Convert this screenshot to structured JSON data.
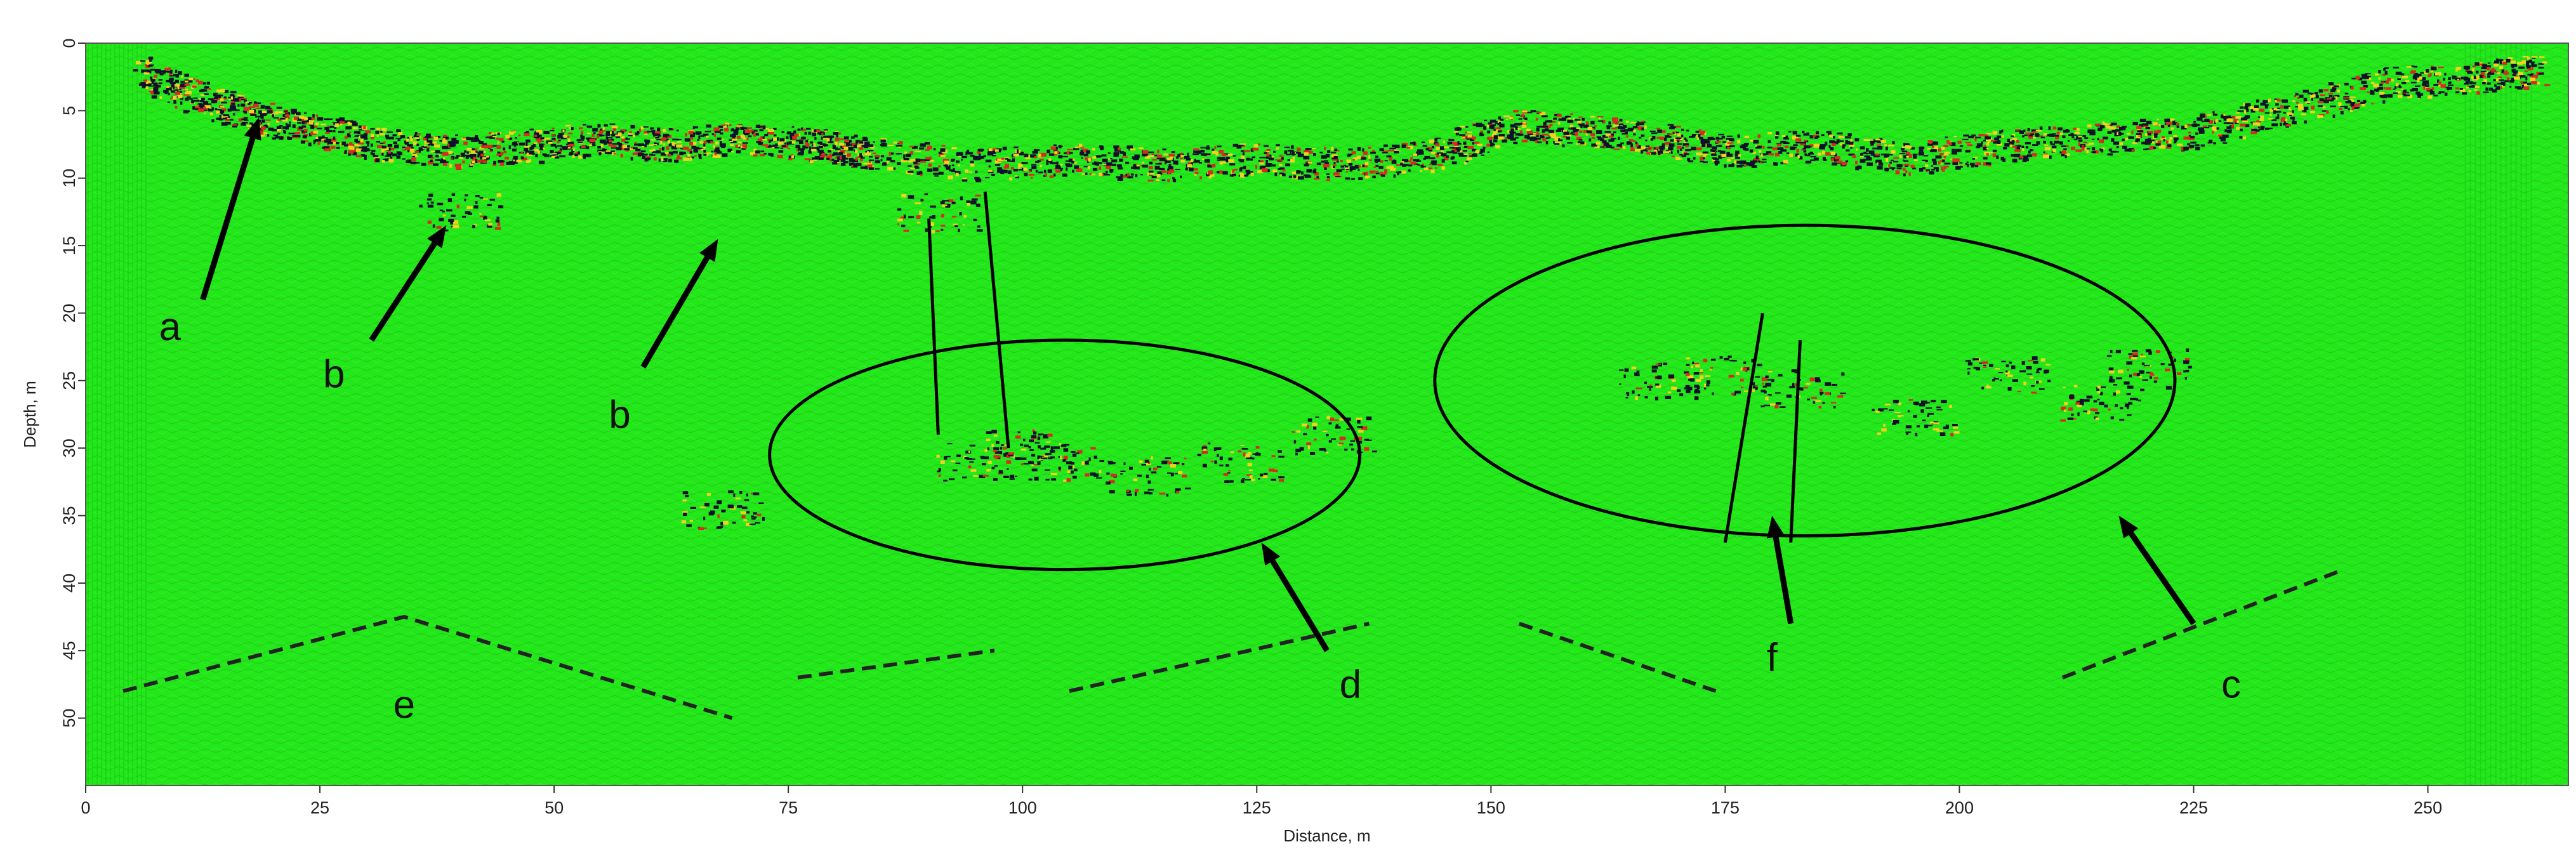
{
  "chart_data": {
    "type": "heatmap",
    "title": "",
    "xlabel": "Distance, m",
    "ylabel": "Depth, m",
    "xlim": [
      0,
      265
    ],
    "ylim": [
      55,
      0
    ],
    "x_ticks": [
      0,
      25,
      50,
      75,
      100,
      125,
      150,
      175,
      200,
      225,
      250
    ],
    "x_tick_labels": [
      "0",
      "25",
      "50",
      "75",
      "100",
      "125",
      "150",
      "175",
      "200",
      "225",
      "250"
    ],
    "y_ticks": [
      0,
      5,
      10,
      15,
      20,
      25,
      30,
      35,
      40,
      45,
      50
    ],
    "y_tick_labels": [
      "0",
      "5",
      "10",
      "15",
      "20",
      "25",
      "30",
      "35",
      "40",
      "45",
      "50"
    ],
    "grid": false,
    "legend": "none",
    "colors": {
      "background": "#22e81a",
      "reflection_dark": "#10102a",
      "reflection_red": "#d82a1e",
      "reflection_yellow": "#f2d21e",
      "annotation": "#000000"
    },
    "near_surface_reflections": [
      [
        6,
        2
      ],
      [
        12,
        4
      ],
      [
        18,
        5.5
      ],
      [
        25,
        6.5
      ],
      [
        32,
        7.5
      ],
      [
        40,
        8
      ],
      [
        48,
        7.5
      ],
      [
        55,
        7
      ],
      [
        62,
        7.5
      ],
      [
        70,
        7
      ],
      [
        78,
        7.5
      ],
      [
        83,
        8
      ],
      [
        95,
        9
      ],
      [
        105,
        8.5
      ],
      [
        115,
        9
      ],
      [
        125,
        8.5
      ],
      [
        135,
        9
      ],
      [
        145,
        8
      ],
      [
        152,
        6
      ],
      [
        160,
        6.5
      ],
      [
        168,
        7
      ],
      [
        175,
        8
      ],
      [
        185,
        7.5
      ],
      [
        195,
        8.5
      ],
      [
        205,
        7.5
      ],
      [
        215,
        7
      ],
      [
        225,
        6.5
      ],
      [
        235,
        5
      ],
      [
        245,
        3
      ],
      [
        255,
        2.5
      ],
      [
        262,
        2
      ]
    ],
    "deep_reflection_clusters": [
      [
        40,
        12.5
      ],
      [
        91,
        12.5
      ],
      [
        95,
        31
      ],
      [
        100,
        30
      ],
      [
        104,
        31
      ],
      [
        113,
        32
      ],
      [
        123,
        31
      ],
      [
        133,
        29
      ],
      [
        68,
        34.5
      ],
      [
        168,
        25
      ],
      [
        175,
        24.5
      ],
      [
        183,
        25.5
      ],
      [
        195,
        27.5
      ],
      [
        205,
        24.5
      ],
      [
        215,
        26.5
      ],
      [
        220,
        24
      ]
    ],
    "annotations": [
      {
        "label": "a",
        "text_at": [
          9,
          22
        ],
        "arrow_from": [
          12.5,
          19
        ],
        "arrow_to": [
          18.5,
          5.5
        ]
      },
      {
        "label": "b",
        "text_at": [
          26.5,
          25.5
        ],
        "arrow_from": [
          30.5,
          22
        ],
        "arrow_to": [
          38.5,
          13.5
        ]
      },
      {
        "label": "b",
        "text_at": [
          57,
          28.5
        ],
        "arrow_from": [
          59.5,
          24
        ],
        "arrow_to": [
          67.5,
          14.5
        ]
      },
      {
        "label": "d",
        "text_at": [
          135,
          48.5
        ],
        "arrow_from": [
          132.5,
          45
        ],
        "arrow_to": [
          125.5,
          37
        ]
      },
      {
        "label": "f",
        "text_at": [
          180,
          46.5
        ],
        "arrow_from": [
          182,
          43
        ],
        "arrow_to": [
          180,
          35
        ]
      },
      {
        "label": "c",
        "text_at": [
          229,
          48.5
        ],
        "arrow_from": [
          225,
          43
        ],
        "arrow_to": [
          217,
          35
        ]
      },
      {
        "label": "e",
        "text_at": [
          34,
          50
        ],
        "arrow_from": null,
        "arrow_to": null
      }
    ],
    "ellipses": [
      {
        "cx": 104.5,
        "cy": 30.5,
        "rx": 31.5,
        "ry": 8.5
      },
      {
        "cx": 183.5,
        "cy": 25,
        "rx": 39.5,
        "ry": 11.5
      }
    ],
    "solid_lines": [
      [
        [
          90,
          13
        ],
        [
          91,
          29
        ]
      ],
      [
        [
          96,
          11
        ],
        [
          98.5,
          30
        ]
      ],
      [
        [
          179,
          20
        ],
        [
          175,
          37
        ]
      ],
      [
        [
          183,
          22
        ],
        [
          182,
          37
        ]
      ]
    ],
    "dashed_lines": [
      [
        [
          4,
          48
        ],
        [
          34,
          42.5
        ],
        [
          69,
          50
        ]
      ],
      [
        [
          76,
          47
        ],
        [
          97,
          45
        ]
      ],
      [
        [
          105,
          48
        ],
        [
          137,
          43
        ]
      ],
      [
        [
          153,
          43
        ],
        [
          174,
          48
        ]
      ],
      [
        [
          211,
          47
        ],
        [
          241,
          39
        ]
      ]
    ]
  }
}
